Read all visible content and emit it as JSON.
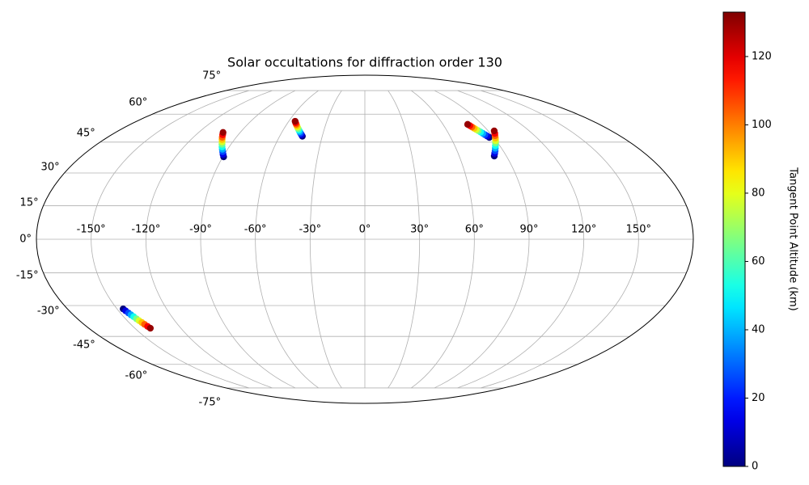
{
  "chart_data": {
    "type": "scatter",
    "projection": "mollweide",
    "title": "Solar occultations for diffraction order 130",
    "grid": true,
    "xticks": [
      {
        "value": -150,
        "label": "-150°"
      },
      {
        "value": -120,
        "label": "-120°"
      },
      {
        "value": -90,
        "label": "-90°"
      },
      {
        "value": -60,
        "label": "-60°"
      },
      {
        "value": -30,
        "label": "-30°"
      },
      {
        "value": 0,
        "label": "0°"
      },
      {
        "value": 30,
        "label": "30°"
      },
      {
        "value": 60,
        "label": "60°"
      },
      {
        "value": 90,
        "label": "90°"
      },
      {
        "value": 120,
        "label": "120°"
      },
      {
        "value": 150,
        "label": "150°"
      }
    ],
    "yticks": [
      {
        "value": -75,
        "label": "-75°"
      },
      {
        "value": -60,
        "label": "-60°"
      },
      {
        "value": -45,
        "label": "-45°"
      },
      {
        "value": -30,
        "label": "-30°"
      },
      {
        "value": -15,
        "label": "-15°"
      },
      {
        "value": 0,
        "label": "0°"
      },
      {
        "value": 15,
        "label": "15°"
      },
      {
        "value": 30,
        "label": "30°"
      },
      {
        "value": 45,
        "label": "45°"
      },
      {
        "value": 60,
        "label": "60°"
      },
      {
        "value": 75,
        "label": "75°"
      }
    ],
    "colorbar": {
      "label": "Tangent Point Altitude (km)",
      "colormap": "jet",
      "lim": [
        0,
        133
      ],
      "ticks": [
        0,
        20,
        40,
        60,
        80,
        100,
        120
      ]
    },
    "series": [
      {
        "x": [
          -89.5,
          -90.8,
          -92.1,
          -93.4,
          -94.7,
          -96.0,
          -97.2,
          -98.5,
          -99.8,
          -101.1,
          -102.4
        ],
        "y": [
          37.7,
          38.9,
          40.2,
          41.4,
          42.6,
          43.9,
          45.1,
          46.3,
          47.5,
          48.8,
          50.0
        ],
        "values": [
          0,
          13,
          26,
          39,
          52,
          65,
          78,
          91,
          104,
          117,
          130
        ]
      },
      {
        "x": [
          -44.0,
          -45.1,
          -46.2,
          -47.3,
          -48.4,
          -49.5,
          -50.6,
          -51.7,
          -52.8,
          -53.9,
          -55.0
        ],
        "y": [
          48.0,
          48.8,
          49.6,
          50.4,
          51.2,
          52.0,
          52.8,
          53.6,
          54.4,
          55.2,
          56.0
        ],
        "values": [
          0,
          13,
          26,
          39,
          52,
          65,
          78,
          91,
          104,
          117,
          130
        ]
      },
      {
        "x": [
          87.0,
          86.2,
          85.4,
          84.6,
          83.8,
          82.9,
          82.1,
          81.3,
          80.5,
          79.7,
          78.9
        ],
        "y": [
          47.4,
          48.1,
          48.8,
          49.5,
          50.2,
          50.9,
          51.5,
          52.2,
          52.9,
          53.6,
          54.3
        ],
        "values": [
          0,
          13,
          26,
          39,
          52,
          65,
          78,
          91,
          104,
          117,
          130
        ]
      },
      {
        "x": [
          82.3,
          83.5,
          84.7,
          85.9,
          87.1,
          88.4,
          89.6,
          90.8,
          92.0,
          93.2,
          94.4
        ],
        "y": [
          38.1,
          39.4,
          40.6,
          41.9,
          43.2,
          44.5,
          45.7,
          47.0,
          48.3,
          49.5,
          50.8
        ],
        "values": [
          0,
          13,
          26,
          39,
          52,
          65,
          78,
          91,
          104,
          117,
          130
        ]
      },
      {
        "x": [
          -146.3,
          -145.7,
          -145.0,
          -144.4,
          -143.7,
          -143.1,
          -142.5,
          -141.8,
          -141.2,
          -140.5,
          -139.9
        ],
        "y": [
          -31.6,
          -32.5,
          -33.5,
          -34.4,
          -35.3,
          -36.3,
          -37.2,
          -38.1,
          -39.0,
          -40.0,
          -40.9
        ],
        "values": [
          0,
          13,
          26,
          39,
          52,
          65,
          78,
          91,
          104,
          117,
          130
        ]
      }
    ]
  }
}
